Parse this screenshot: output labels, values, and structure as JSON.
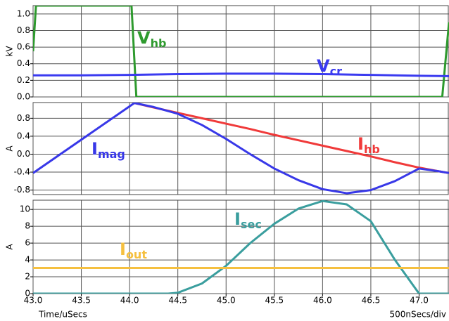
{
  "chart_data": [
    {
      "type": "line",
      "y_label": "kV",
      "xlim": [
        43.0,
        47.31
      ],
      "ylim": [
        0,
        1.1
      ],
      "yticks": [
        {
          "value": 0,
          "label": "0.0"
        },
        0.2,
        0.4,
        0.6,
        0.8,
        {
          "value": 1,
          "label": "1.0"
        }
      ],
      "grid": true,
      "series": [
        {
          "name": "V",
          "subscript": "hb",
          "color": "#2e9a2e",
          "x": [
            43.0,
            43.03,
            44.02,
            44.07,
            47.24,
            47.31
          ],
          "values": [
            0.55,
            1.1,
            1.1,
            0,
            0,
            0.9
          ]
        },
        {
          "name": "V",
          "subscript": "cr",
          "color": "#3b3bf0",
          "x": [
            43.0,
            43.5,
            44.0,
            44.5,
            45.0,
            45.5,
            46.0,
            46.5,
            47.0,
            47.31
          ],
          "values": [
            0.26,
            0.26,
            0.265,
            0.275,
            0.28,
            0.28,
            0.275,
            0.265,
            0.255,
            0.25
          ]
        }
      ]
    },
    {
      "type": "line",
      "y_label": "A",
      "xlim": [
        43.0,
        47.31
      ],
      "ylim": [
        -0.9,
        1.15
      ],
      "yticks": [
        -0.8,
        -0.4,
        {
          "value": 0,
          "label": "0.0"
        },
        0.4,
        0.8
      ],
      "grid": true,
      "series": [
        {
          "name": "I",
          "subscript": "hb",
          "color": "#f03a3a",
          "x": [
            43.0,
            44.05,
            44.25,
            44.5,
            44.75,
            45.0,
            45.25,
            45.5,
            45.75,
            46.0,
            46.25,
            46.5,
            46.75,
            47.0,
            47.2,
            47.31
          ],
          "values": [
            null,
            1.14,
            1.04,
            0.92,
            0.8,
            0.68,
            0.56,
            0.43,
            0.31,
            0.19,
            0.07,
            -0.05,
            -0.18,
            -0.3,
            -0.38,
            -0.42
          ]
        },
        {
          "name": "I",
          "subscript": "mag",
          "color": "#3838e8",
          "x": [
            43.0,
            44.05,
            44.25,
            44.5,
            44.75,
            45.0,
            45.25,
            45.5,
            45.75,
            46.0,
            46.25,
            46.5,
            46.75,
            47.0,
            47.2,
            47.31
          ],
          "values": [
            -0.42,
            1.14,
            1.05,
            0.9,
            0.65,
            0.34,
            0.0,
            -0.32,
            -0.58,
            -0.78,
            -0.87,
            -0.8,
            -0.6,
            -0.32,
            -0.38,
            -0.42
          ]
        }
      ]
    },
    {
      "type": "line",
      "y_label": "A",
      "x_label": "Time/uSecs",
      "note": "500nSecs/div",
      "xlim": [
        43.0,
        47.31
      ],
      "ylim": [
        0,
        11.1
      ],
      "xticks": [
        {
          "value": 43,
          "label": "43.0"
        },
        43.5,
        {
          "value": 44,
          "label": "44.0"
        },
        44.5,
        {
          "value": 45,
          "label": "45.0"
        },
        45.5,
        {
          "value": 46,
          "label": "46.0"
        },
        46.5,
        {
          "value": 47,
          "label": "47.0"
        }
      ],
      "yticks": [
        0,
        2,
        4,
        6,
        8,
        10
      ],
      "grid": true,
      "series": [
        {
          "name": "I",
          "subscript": "sec",
          "color": "#3a9e9e",
          "x": [
            43.0,
            44.4,
            44.5,
            44.75,
            45.0,
            45.25,
            45.5,
            45.75,
            46.0,
            46.25,
            46.5,
            46.75,
            47.0,
            47.31
          ],
          "values": [
            0,
            0,
            0.1,
            1.2,
            3.3,
            6.0,
            8.3,
            10.1,
            11.0,
            10.6,
            8.6,
            4.0,
            0,
            0
          ]
        },
        {
          "name": "I",
          "subscript": "out",
          "color": "#f5c040",
          "x": [
            43.0,
            47.31
          ],
          "values": [
            3.05,
            3.05
          ]
        }
      ]
    }
  ]
}
